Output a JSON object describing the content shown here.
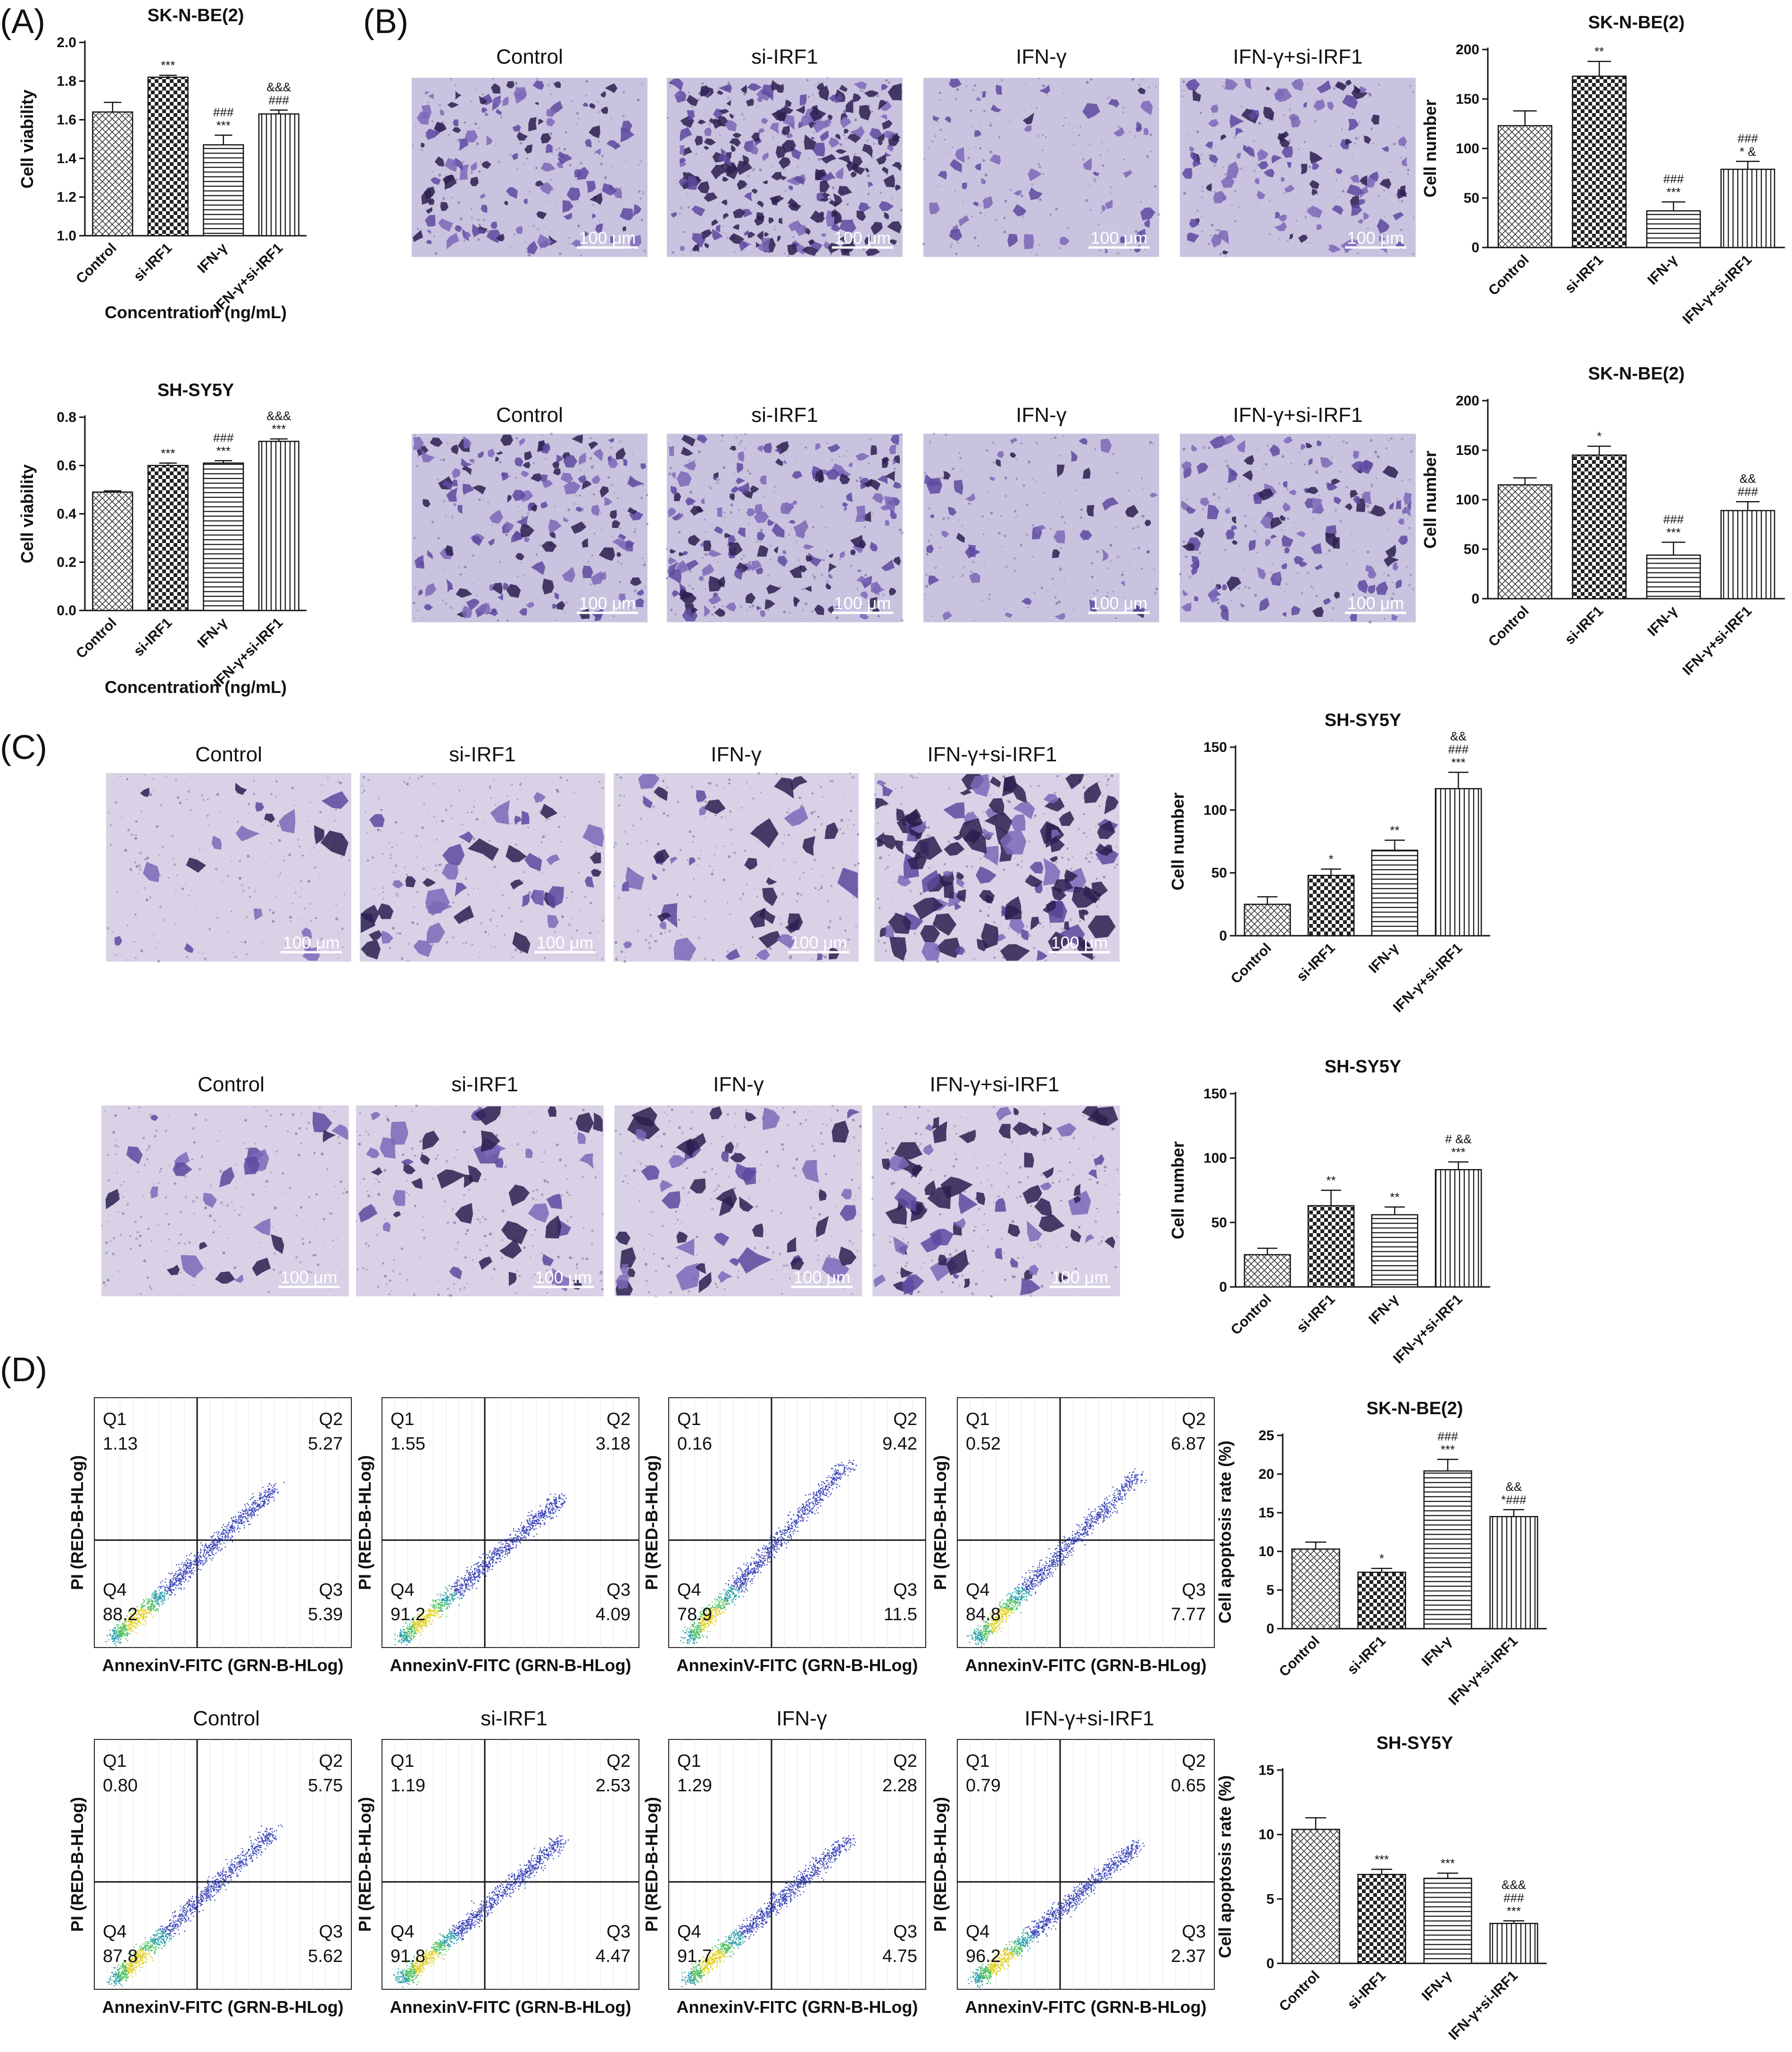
{
  "panels": {
    "A": "(A)",
    "B": "(B)",
    "C": "(C)",
    "D": "(D)"
  },
  "groups": [
    "Control",
    "si-IRF1",
    "IFN-γ",
    "IFN-γ+si-IRF1"
  ],
  "groups_alt": [
    "Control",
    "si-IRF1",
    "IFN-γ",
    "IFN-γ+si-IRF1"
  ],
  "scale_bar": "100 μm",
  "flow_xlabel": "AnnexinV-FITC (GRN-B-HLog)",
  "flow_ylabel": "PI (RED-B-HLog)",
  "quadrant_names": [
    "Q1",
    "Q2",
    "Q3",
    "Q4"
  ],
  "chart_data": [
    {
      "id": "A1",
      "type": "bar",
      "title": "SK-N-BE(2)",
      "categories": [
        "Control",
        "si-IRF1",
        "IFN-γ",
        "IFN-γ+si-IRF1"
      ],
      "values": [
        1.64,
        1.82,
        1.47,
        1.63
      ],
      "errors": [
        0.05,
        0.01,
        0.05,
        0.02
      ],
      "ylabel": "Cell viability",
      "xlabel": "Concentration (ng/mL)",
      "ylim": [
        1.0,
        2.0
      ],
      "yticks": [
        "1.0",
        "1.2",
        "1.4",
        "1.6",
        "1.8",
        "2.0"
      ],
      "annotations": [
        [],
        [
          "***"
        ],
        [
          "###",
          "***"
        ],
        [
          "&&&",
          "###"
        ]
      ]
    },
    {
      "id": "A2",
      "type": "bar",
      "title": "SH-SY5Y",
      "categories": [
        "Control",
        "si-IRF1",
        "IFN-γ",
        "IFN-γ+si-IRF1"
      ],
      "values": [
        0.49,
        0.6,
        0.61,
        0.7
      ],
      "errors": [
        0.005,
        0.01,
        0.01,
        0.01
      ],
      "ylabel": "Cell viability",
      "xlabel": "Concentration (ng/mL)",
      "ylim": [
        0,
        0.8
      ],
      "yticks": [
        "0.0",
        "0.2",
        "0.4",
        "0.6",
        "0.8"
      ],
      "annotations": [
        [],
        [
          "***"
        ],
        [
          "###",
          "***"
        ],
        [
          "&&&",
          "***"
        ]
      ]
    },
    {
      "id": "B1",
      "type": "bar",
      "title": "SK-N-BE(2)",
      "categories": [
        "Control",
        "si-IRF1",
        "IFN-γ",
        "IFN-γ+si-IRF1"
      ],
      "values": [
        123,
        173,
        37,
        79
      ],
      "errors": [
        15,
        15,
        9,
        8
      ],
      "ylabel": "Cell number",
      "xlabel": "",
      "ylim": [
        0,
        200
      ],
      "yticks": [
        "0",
        "50",
        "100",
        "150",
        "200"
      ],
      "annotations": [
        [],
        [
          "**"
        ],
        [
          "###",
          "***"
        ],
        [
          "###",
          "* &"
        ]
      ]
    },
    {
      "id": "B2",
      "type": "bar",
      "title": "SK-N-BE(2)",
      "categories": [
        "Control",
        "si-IRF1",
        "IFN-γ",
        "IFN-γ+si-IRF1"
      ],
      "values": [
        115,
        145,
        44,
        89
      ],
      "errors": [
        7,
        9,
        13,
        9
      ],
      "ylabel": "Cell number",
      "xlabel": "",
      "ylim": [
        0,
        200
      ],
      "yticks": [
        "0",
        "50",
        "100",
        "150",
        "200"
      ],
      "annotations": [
        [],
        [
          "*"
        ],
        [
          "###",
          "***"
        ],
        [
          "&&",
          "###"
        ]
      ]
    },
    {
      "id": "C1",
      "type": "bar",
      "title": "SH-SY5Y",
      "categories": [
        "Control",
        "si-IRF1",
        "IFN-γ",
        "IFN-γ+si-IRF1"
      ],
      "values": [
        25,
        48,
        68,
        117
      ],
      "errors": [
        6,
        5,
        8,
        13
      ],
      "ylabel": "Cell number",
      "xlabel": "",
      "ylim": [
        0,
        150
      ],
      "yticks": [
        "0",
        "50",
        "100",
        "150"
      ],
      "annotations": [
        [],
        [
          "*"
        ],
        [
          "**"
        ],
        [
          "&&",
          "###",
          "***"
        ]
      ]
    },
    {
      "id": "C2",
      "type": "bar",
      "title": "SH-SY5Y",
      "categories": [
        "Control",
        "si-IRF1",
        "IFN-γ",
        "IFN-γ+si-IRF1"
      ],
      "values": [
        25,
        63,
        56,
        91
      ],
      "errors": [
        5,
        12,
        6,
        6
      ],
      "ylabel": "Cell number",
      "xlabel": "",
      "ylim": [
        0,
        150
      ],
      "yticks": [
        "0",
        "50",
        "100",
        "150"
      ],
      "annotations": [
        [],
        [
          "**"
        ],
        [
          "**"
        ],
        [
          "# &&",
          "***"
        ]
      ]
    },
    {
      "id": "D1",
      "type": "bar",
      "title": "SK-N-BE(2)",
      "categories": [
        "Control",
        "si-IRF1",
        "IFN-γ",
        "IFN-γ+si-IRF1"
      ],
      "values": [
        10.3,
        7.3,
        20.4,
        14.5
      ],
      "errors": [
        0.9,
        0.5,
        1.5,
        0.9
      ],
      "ylabel": "Cell apoptosis rate (%)",
      "xlabel": "",
      "ylim": [
        0,
        25
      ],
      "yticks": [
        "0",
        "5",
        "10",
        "15",
        "20",
        "25"
      ],
      "annotations": [
        [],
        [
          "*"
        ],
        [
          "###",
          "***"
        ],
        [
          "&&",
          "*###"
        ]
      ]
    },
    {
      "id": "D2",
      "type": "bar",
      "title": "SH-SY5Y",
      "categories": [
        "Control",
        "si-IRF1",
        "IFN-γ",
        "IFN-γ+si-IRF1"
      ],
      "values": [
        10.4,
        6.9,
        6.6,
        3.1
      ],
      "errors": [
        0.9,
        0.4,
        0.4,
        0.2
      ],
      "ylabel": "Cell apoptosis rate (%)",
      "xlabel": "",
      "ylim": [
        0,
        15
      ],
      "yticks": [
        "0",
        "5",
        "10",
        "15"
      ],
      "annotations": [
        [],
        [
          "***"
        ],
        [
          "***"
        ],
        [
          "&&&",
          "###",
          "***"
        ]
      ]
    }
  ],
  "flow_data": [
    {
      "id": "SK1",
      "Q1": "1.13",
      "Q2": "5.27",
      "Q3": "5.39",
      "Q4": "88.2"
    },
    {
      "id": "SK2",
      "Q1": "1.55",
      "Q2": "3.18",
      "Q3": "4.09",
      "Q4": "91.2"
    },
    {
      "id": "SK3",
      "Q1": "0.16",
      "Q2": "9.42",
      "Q3": "11.5",
      "Q4": "78.9"
    },
    {
      "id": "SK4",
      "Q1": "0.52",
      "Q2": "6.87",
      "Q3": "7.77",
      "Q4": "84.8"
    },
    {
      "id": "SH1",
      "Q1": "0.80",
      "Q2": "5.75",
      "Q3": "5.62",
      "Q4": "87.8"
    },
    {
      "id": "SH2",
      "Q1": "1.19",
      "Q2": "2.53",
      "Q3": "4.47",
      "Q4": "91.8"
    },
    {
      "id": "SH3",
      "Q1": "1.29",
      "Q2": "2.28",
      "Q3": "4.75",
      "Q4": "91.7"
    },
    {
      "id": "SH4",
      "Q1": "0.79",
      "Q2": "0.65",
      "Q3": "2.37",
      "Q4": "96.2"
    }
  ]
}
